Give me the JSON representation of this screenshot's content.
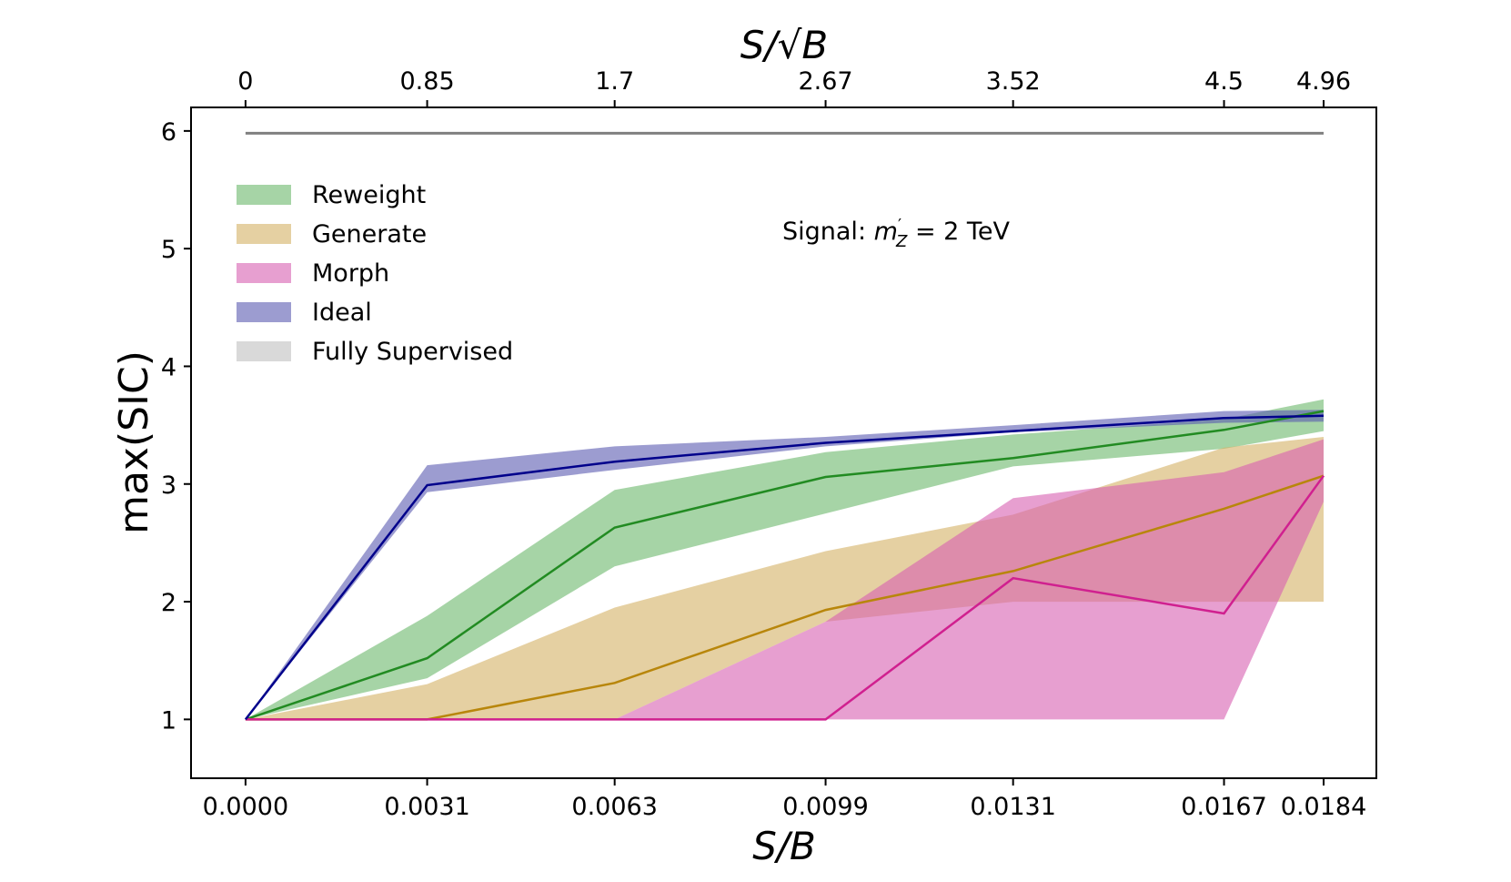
{
  "chart_data": {
    "type": "line",
    "title": "",
    "xlabel": "S/B",
    "x2label": "S/√B",
    "ylabel": "max(SIC)",
    "ylim": [
      0.5,
      6.2
    ],
    "yticks": [
      1,
      2,
      3,
      4,
      5,
      6
    ],
    "ytick_labels": [
      "1",
      "2",
      "3",
      "4",
      "5",
      "6"
    ],
    "x": [
      0.0,
      0.0031,
      0.0063,
      0.0099,
      0.0131,
      0.0167,
      0.0184
    ],
    "xlim": [
      -0.00093,
      0.0193
    ],
    "xtick_labels": [
      "0.0000",
      "0.0031",
      "0.0063",
      "0.0099",
      "0.0131",
      "0.0167",
      "0.0184"
    ],
    "x2tick_labels": [
      "0",
      "0.85",
      "1.7",
      "2.67",
      "3.52",
      "4.5",
      "4.96"
    ],
    "annotation": {
      "prefix": "Signal: ",
      "symbol": "m",
      "superscript": "′",
      "subscript": "Z",
      "suffix": " = 2 TeV"
    },
    "legend_position": "upper-left",
    "series": [
      {
        "name": "Reweight",
        "line_color": "#228b22",
        "band_color": "#6ab86a",
        "values": [
          1.0,
          1.52,
          2.63,
          3.06,
          3.22,
          3.46,
          3.62
        ],
        "lower": [
          1.0,
          1.35,
          2.3,
          2.75,
          3.15,
          3.3,
          3.45
        ],
        "upper": [
          1.0,
          1.88,
          2.95,
          3.27,
          3.42,
          3.55,
          3.72
        ]
      },
      {
        "name": "Generate",
        "line_color": "#b8860b",
        "band_color": "#d4b064",
        "values": [
          1.0,
          1.0,
          1.31,
          1.93,
          2.26,
          2.79,
          3.07
        ],
        "lower": [
          1.0,
          1.0,
          1.0,
          1.83,
          2.0,
          2.0,
          2.0
        ],
        "upper": [
          1.0,
          1.3,
          1.95,
          2.43,
          2.74,
          3.31,
          3.4
        ]
      },
      {
        "name": "Morph",
        "line_color": "#d0208f",
        "band_color": "#d75fb0",
        "values": [
          1.0,
          1.0,
          1.0,
          1.0,
          2.2,
          1.9,
          3.07
        ],
        "lower": [
          1.0,
          1.0,
          1.0,
          1.0,
          1.0,
          1.0,
          2.85
        ],
        "upper": [
          1.0,
          1.0,
          1.0,
          1.83,
          2.88,
          3.1,
          3.38
        ]
      },
      {
        "name": "Ideal",
        "line_color": "#00008b",
        "band_color": "#5a5ab0",
        "values": [
          1.0,
          2.99,
          3.19,
          3.35,
          3.45,
          3.56,
          3.58
        ],
        "lower": [
          1.0,
          2.93,
          3.12,
          3.32,
          3.44,
          3.52,
          3.53
        ],
        "upper": [
          1.0,
          3.16,
          3.32,
          3.4,
          3.5,
          3.62,
          3.63
        ]
      },
      {
        "name": "Fully Supervised",
        "line_color": "#808080",
        "band_color": "#bfbfbf",
        "values": [
          5.98,
          5.98,
          5.98,
          5.98,
          5.98,
          5.98,
          5.98
        ],
        "lower": [
          5.97,
          5.97,
          5.97,
          5.97,
          5.97,
          5.97,
          5.97
        ],
        "upper": [
          5.99,
          5.99,
          5.99,
          5.99,
          5.99,
          5.99,
          5.99
        ]
      }
    ]
  }
}
